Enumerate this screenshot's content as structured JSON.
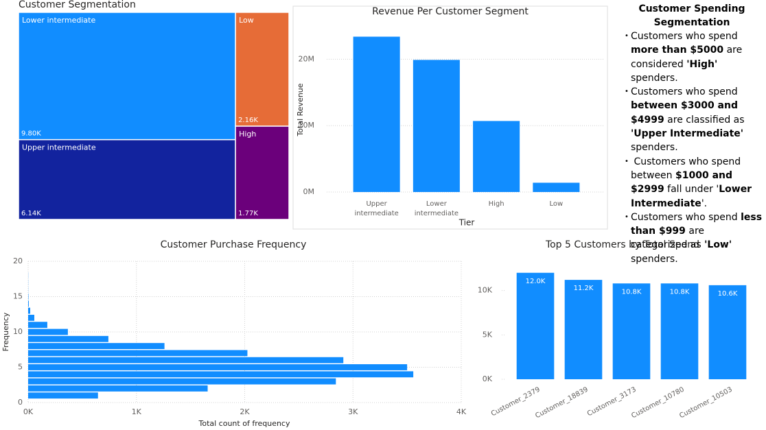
{
  "chart_data": [
    {
      "type": "treemap",
      "title": "Customer Segmentation",
      "categories": [
        "Lower intermediate",
        "Upper intermediate",
        "Low",
        "High"
      ],
      "values": [
        9800,
        6140,
        2160,
        1770
      ],
      "value_labels": [
        "9.80K",
        "6.14K",
        "2.16K",
        "1.77K"
      ],
      "colors": [
        "#118DFF",
        "#12239E",
        "#E66C37",
        "#6B007B"
      ]
    },
    {
      "type": "bar",
      "title": "Revenue Per Customer Segment",
      "categories": [
        "Upper intermediate",
        "Lower intermediate",
        "High",
        "Low"
      ],
      "values": [
        23400000,
        19900000,
        10700000,
        1400000
      ],
      "color": "#118DFF",
      "x_label": "Tier",
      "y_label": "Total Revenue",
      "ylim": [
        0,
        25000000
      ],
      "yticks": [
        {
          "value": 0,
          "label": "0M"
        },
        {
          "value": 10000000,
          "label": "10M"
        },
        {
          "value": 20000000,
          "label": "20M"
        }
      ],
      "grid": true
    },
    {
      "type": "bar",
      "orientation": "horizontal",
      "title": "Customer Purchase Frequency",
      "y": [
        1,
        2,
        3,
        4,
        5,
        6,
        7,
        8,
        9,
        10,
        11,
        12,
        13,
        14,
        15,
        16,
        17,
        18
      ],
      "values": [
        645,
        1658,
        2842,
        3557,
        3500,
        2911,
        2025,
        1259,
        741,
        367,
        177,
        57,
        19,
        6,
        3,
        1,
        1,
        1
      ],
      "color": "#118DFF",
      "x_label": "Total count of frequency",
      "y_label": "Frequency",
      "xlim": [
        0,
        4000
      ],
      "xticks": [
        {
          "value": 0,
          "label": "0K"
        },
        {
          "value": 1000,
          "label": "1K"
        },
        {
          "value": 2000,
          "label": "2K"
        },
        {
          "value": 3000,
          "label": "3K"
        },
        {
          "value": 4000,
          "label": "4K"
        }
      ],
      "ylim": [
        0,
        20
      ],
      "yticks": [
        0,
        5,
        10,
        15,
        20
      ],
      "grid": true
    },
    {
      "type": "bar",
      "title": "Top 5 Customers by Total Spend",
      "categories": [
        "Customer_2379",
        "Customer_18839",
        "Customer_3173",
        "Customer_10780",
        "Customer_10503"
      ],
      "values": [
        12000,
        11200,
        10800,
        10800,
        10600
      ],
      "value_labels": [
        "12.0K",
        "11.2K",
        "10.8K",
        "10.8K",
        "10.6K"
      ],
      "color": "#118DFF",
      "ylim": [
        0,
        12600
      ],
      "yticks": [
        {
          "value": 0,
          "label": "0K"
        },
        {
          "value": 5000,
          "label": "5K"
        },
        {
          "value": 10000,
          "label": "10K"
        }
      ],
      "grid": false
    }
  ],
  "text_panel": {
    "title": "Customer Spending Segmentation",
    "bullets": [
      [
        {
          "text": "Customers who spend ",
          "bold": false
        },
        {
          "text": "more than $5000",
          "bold": true
        },
        {
          "text": " are considered ",
          "bold": false
        },
        {
          "text": "'High'",
          "bold": true
        },
        {
          "text": " spenders.",
          "bold": false
        }
      ],
      [
        {
          "text": "Customers who spend ",
          "bold": false
        },
        {
          "text": "between $3000 and $4999",
          "bold": true
        },
        {
          "text": " are classified as ",
          "bold": false
        },
        {
          "text": "'Upper Intermediate'",
          "bold": true
        },
        {
          "text": " spenders.",
          "bold": false
        }
      ],
      [
        {
          "text": " Customers who spend between ",
          "bold": false
        },
        {
          "text": "$1000 and $2999",
          "bold": true
        },
        {
          "text": " fall under '",
          "bold": false
        },
        {
          "text": "Lower Intermediate",
          "bold": true
        },
        {
          "text": "'.",
          "bold": false
        }
      ],
      [
        {
          "text": "Customers who spend ",
          "bold": false
        },
        {
          "text": "less than $999",
          "bold": true
        },
        {
          "text": " are categorized as ",
          "bold": false
        },
        {
          "text": "'Low'",
          "bold": true
        },
        {
          "text": " spenders.",
          "bold": false
        }
      ]
    ]
  }
}
